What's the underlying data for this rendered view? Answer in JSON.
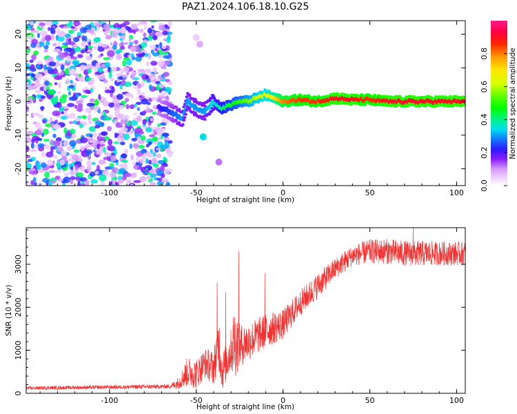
{
  "title": "PAZ1.2024.106.18.10.G25",
  "chart_data": [
    {
      "type": "heatmap",
      "xlabel": "Height of straight line (km)",
      "ylabel": "Frequency (Hz)",
      "colorbar_label": "Normalized spectral amplitude",
      "xlim": [
        -148,
        105
      ],
      "ylim": [
        -25,
        24
      ],
      "xticks": [
        -100,
        -50,
        0,
        50,
        100
      ],
      "xtick_labels": [
        "-100",
        "-50",
        "0",
        "50",
        "100"
      ],
      "yticks": [
        -20,
        -10,
        0,
        10,
        20
      ],
      "ytick_labels": [
        "-20",
        "-10",
        "0",
        "10",
        "20"
      ],
      "colorbar_ticks": [
        0.0,
        0.2,
        0.4,
        0.6,
        0.8
      ],
      "colorbar_tick_labels": [
        "0.0",
        "0.2",
        "0.4",
        "0.6",
        "0.8"
      ],
      "colorbar_range": [
        0,
        1
      ],
      "colormap": "gist_ncar_r",
      "noise_region": {
        "x_from": -148,
        "x_to": -65,
        "amplitude": [
          0.05,
          0.45
        ]
      },
      "ridge": {
        "x": [
          -72,
          -65,
          -58,
          -55,
          -50,
          -45,
          -40,
          -35,
          -30,
          -25,
          -20,
          -15,
          -10,
          -5,
          0,
          10,
          20,
          30,
          40,
          50,
          60,
          70,
          80,
          90,
          100,
          105
        ],
        "frequency": [
          -1.5,
          -3,
          -5,
          0,
          -2,
          -3,
          0,
          -2,
          -1,
          0,
          0,
          1,
          2,
          1,
          0,
          0.5,
          0,
          1,
          0.5,
          0.5,
          0,
          0,
          0,
          0,
          0,
          0
        ],
        "amplitude": [
          0.2,
          0.25,
          0.3,
          0.3,
          0.3,
          0.3,
          0.35,
          0.4,
          0.45,
          0.5,
          0.55,
          0.6,
          0.62,
          0.7,
          0.8,
          0.85,
          0.85,
          0.9,
          0.9,
          0.85,
          0.9,
          0.9,
          0.9,
          0.9,
          0.9,
          0.9
        ]
      },
      "isolated_blobs": [
        {
          "x": -46,
          "frequency": -10.5,
          "amplitude": 0.35
        },
        {
          "x": -37,
          "frequency": -18,
          "amplitude": 0.12
        },
        {
          "x": -48,
          "frequency": 17,
          "amplitude": 0.08
        },
        {
          "x": -50,
          "frequency": 19,
          "amplitude": 0.05
        }
      ],
      "grid": false
    },
    {
      "type": "line",
      "xlabel": "Height of straight line (km)",
      "ylabel": "SNR (10 * v/v)",
      "xlim": [
        -148,
        105
      ],
      "ylim": [
        0,
        3850
      ],
      "xticks": [
        -100,
        -50,
        0,
        50,
        100
      ],
      "xtick_labels": [
        "-100",
        "-50",
        "0",
        "50",
        "100"
      ],
      "yticks": [
        0,
        1000,
        2000,
        3000
      ],
      "ytick_labels": [
        "0",
        "1000",
        "2000",
        "3000"
      ],
      "color": "#ee3333",
      "envelope": {
        "x": [
          -148,
          -65,
          -60,
          -55,
          -50,
          -45,
          -40,
          -37,
          -35,
          -30,
          -28,
          -25,
          -20,
          -10,
          0,
          10,
          20,
          30,
          40,
          50,
          60,
          70,
          80,
          90,
          100,
          105
        ],
        "mean": [
          120,
          160,
          250,
          500,
          450,
          700,
          600,
          1200,
          500,
          1000,
          1200,
          1100,
          1200,
          1450,
          1600,
          2100,
          2500,
          2900,
          3200,
          3300,
          3300,
          3250,
          3250,
          3250,
          3250,
          3250
        ],
        "jitter": [
          40,
          50,
          150,
          350,
          350,
          350,
          400,
          700,
          450,
          500,
          900,
          500,
          450,
          400,
          350,
          300,
          300,
          250,
          250,
          280,
          300,
          300,
          300,
          280,
          280,
          280
        ]
      },
      "peaks": [
        {
          "x": -38,
          "y": 2580
        },
        {
          "x": -33,
          "y": 2350
        },
        {
          "x": -25.5,
          "y": 3300
        },
        {
          "x": -10.5,
          "y": 2800
        },
        {
          "x": 75,
          "y": 3850
        }
      ],
      "grid": false
    }
  ]
}
